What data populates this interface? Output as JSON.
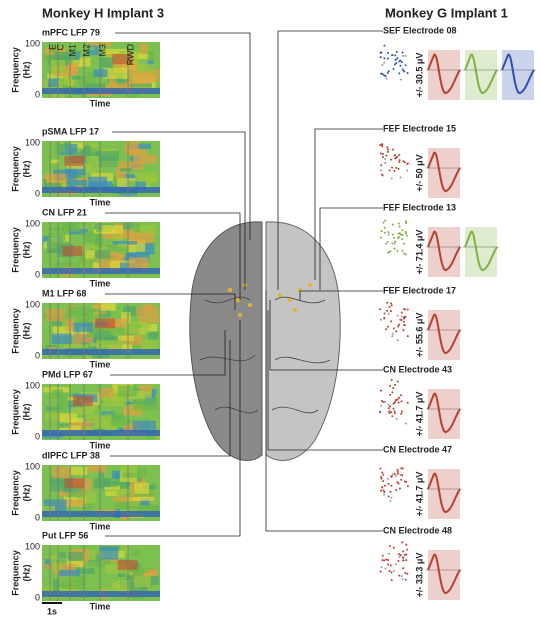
{
  "left": {
    "title": "Monkey H Implant 3",
    "panels": [
      {
        "label": "mPFC LFP 79"
      },
      {
        "label": "pSMA LFP 17"
      },
      {
        "label": "CN LFP 21"
      },
      {
        "label": "M1 LFP 68"
      },
      {
        "label": "PMd LFP 67"
      },
      {
        "label": "dlPFC LFP 38"
      },
      {
        "label": "Put LFP 56"
      }
    ],
    "y_label": [
      "Frequency",
      "(Hz)"
    ],
    "y_ticks": [
      "100",
      "0"
    ],
    "x_label": "Time",
    "events": [
      "E",
      "C",
      "M1",
      "M2",
      "M3",
      "RWD"
    ],
    "scale_bar": "1s"
  },
  "right": {
    "title": "Monkey G Implant 1",
    "panels": [
      {
        "label": "SEF Electrode 08",
        "amplitude": "+/- 30.5 μV"
      },
      {
        "label": "FEF Electrode 15",
        "amplitude": "+/- 50 μV"
      },
      {
        "label": "FEF Electrode 13",
        "amplitude": "+/- 71.4 μV"
      },
      {
        "label": "FEF Electrode 17",
        "amplitude": "+/- 55.6 μV"
      },
      {
        "label": "CN Electrode 43",
        "amplitude": "+/- 41.7 μV"
      },
      {
        "label": "CN Electrode 47",
        "amplitude": "+/- 41.7 μV"
      },
      {
        "label": "CN Electrode 48",
        "amplitude": "+/- 33.3 μV"
      }
    ]
  }
}
